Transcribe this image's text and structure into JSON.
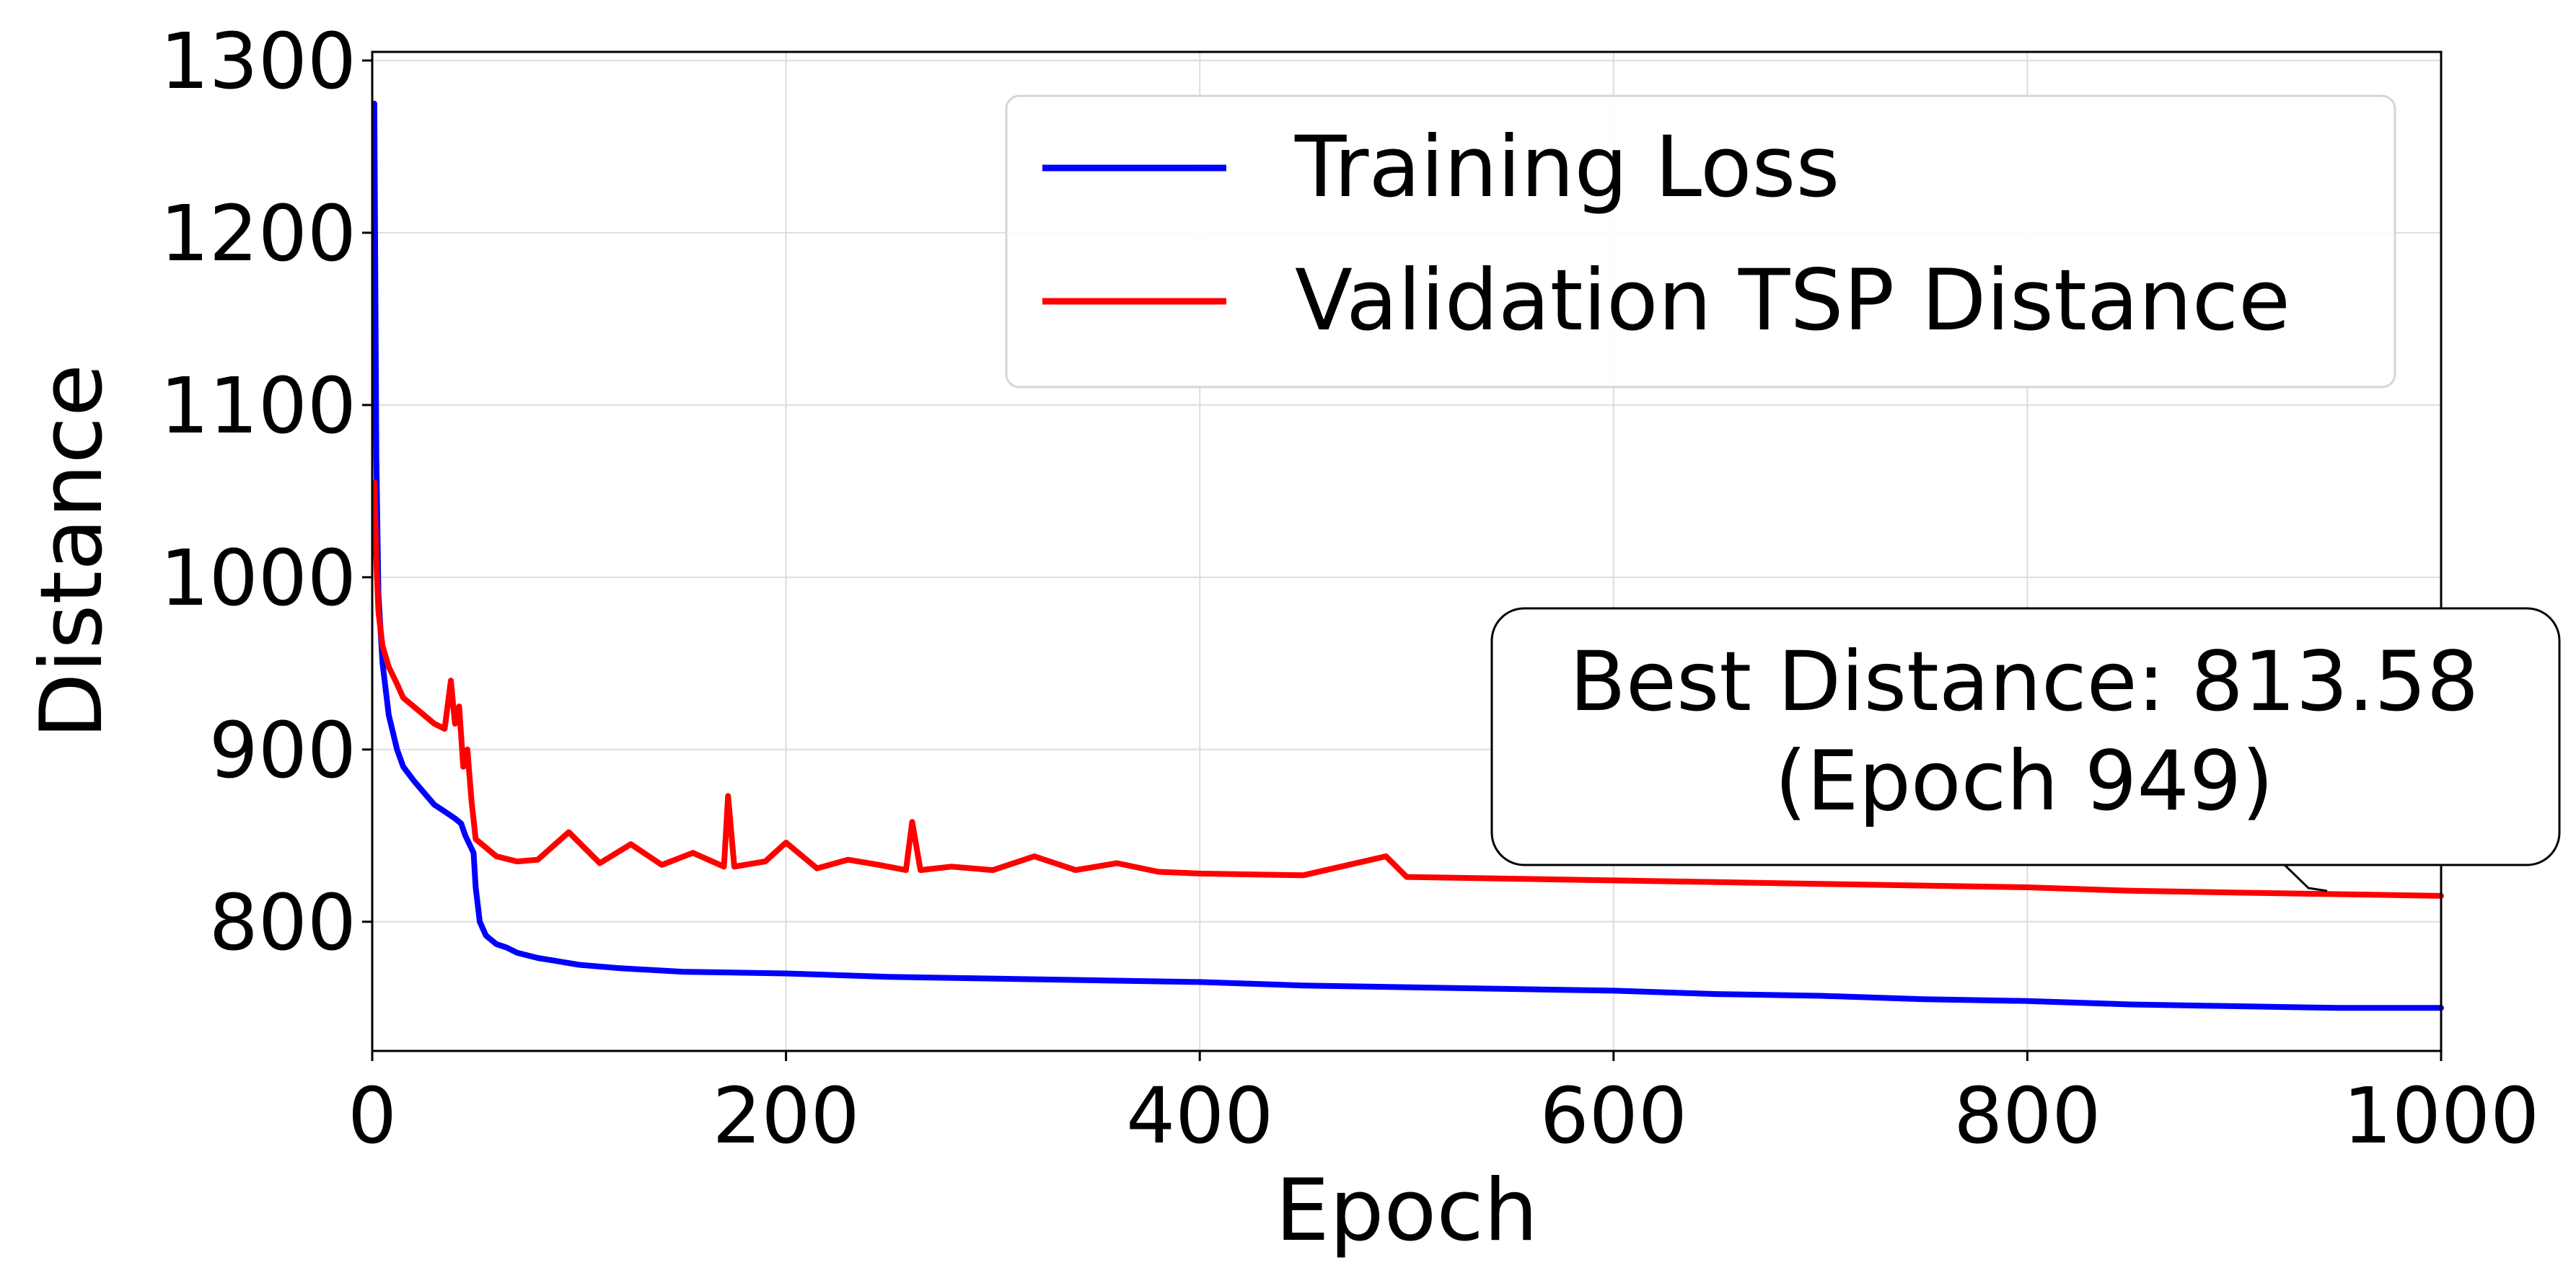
{
  "chart_data": {
    "type": "line",
    "title": "",
    "xlabel": "Epoch",
    "ylabel": "Distance",
    "xlim": [
      0,
      1000
    ],
    "ylim": [
      725,
      1305
    ],
    "xticks": [
      0,
      200,
      400,
      600,
      800,
      1000
    ],
    "yticks": [
      800,
      900,
      1000,
      1100,
      1200,
      1300
    ],
    "grid": true,
    "legend_position": "top-right",
    "series": [
      {
        "name": "Training Loss",
        "color": "#0000ff",
        "x": [
          1,
          2,
          3,
          5,
          8,
          12,
          15,
          20,
          25,
          30,
          35,
          40,
          43,
          45,
          47,
          49,
          50,
          52,
          55,
          60,
          65,
          70,
          80,
          90,
          100,
          120,
          150,
          200,
          250,
          300,
          350,
          400,
          450,
          500,
          550,
          600,
          650,
          700,
          750,
          800,
          850,
          900,
          950,
          1000
        ],
        "y": [
          1275,
          1070,
          990,
          950,
          920,
          900,
          890,
          882,
          875,
          868,
          864,
          860,
          857,
          850,
          845,
          840,
          820,
          800,
          792,
          787,
          785,
          782,
          779,
          777,
          775,
          773,
          771,
          770,
          768,
          767,
          766,
          765,
          763,
          762,
          761,
          760,
          758,
          757,
          755,
          754,
          752,
          751,
          750,
          750
        ]
      },
      {
        "name": "Validation TSP Distance",
        "color": "#ff0000",
        "x": [
          1,
          2,
          3,
          5,
          8,
          12,
          15,
          20,
          25,
          30,
          35,
          38,
          40,
          42,
          44,
          46,
          48,
          50,
          55,
          60,
          70,
          80,
          95,
          110,
          125,
          140,
          155,
          170,
          172,
          175,
          190,
          200,
          215,
          230,
          245,
          258,
          261,
          265,
          280,
          300,
          320,
          340,
          360,
          380,
          400,
          450,
          490,
          500,
          550,
          600,
          650,
          700,
          750,
          800,
          850,
          900,
          950,
          1000
        ],
        "y": [
          1055,
          1010,
          980,
          960,
          948,
          938,
          930,
          925,
          920,
          915,
          912,
          940,
          915,
          925,
          890,
          900,
          870,
          848,
          843,
          838,
          835,
          836,
          852,
          834,
          845,
          833,
          840,
          832,
          873,
          832,
          835,
          846,
          831,
          836,
          833,
          830,
          858,
          830,
          832,
          830,
          838,
          830,
          834,
          829,
          828,
          827,
          838,
          826,
          825,
          824,
          823,
          822,
          821,
          820,
          818,
          817,
          816,
          815
        ]
      }
    ],
    "annotation": {
      "line1": "Best Distance: 813.58",
      "line2": "(Epoch 949)",
      "target_x": 949,
      "target_y": 813.58
    }
  }
}
